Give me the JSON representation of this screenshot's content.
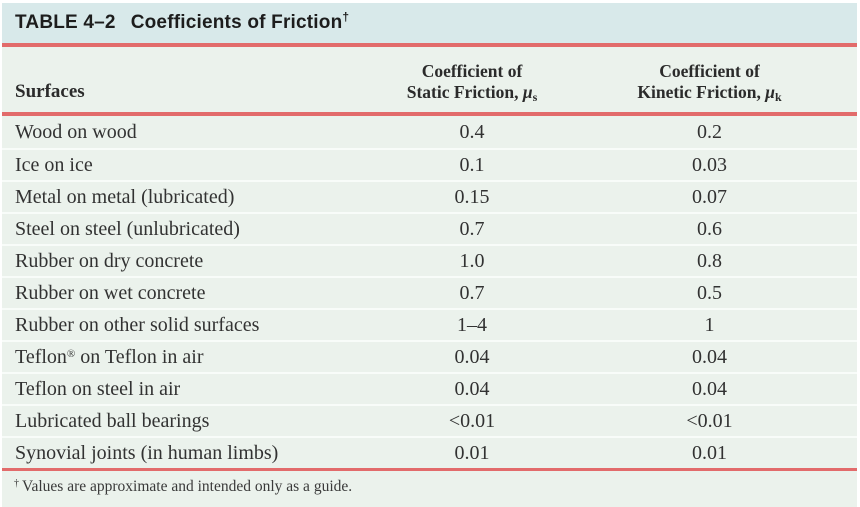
{
  "colors": {
    "title_bar_bg": "#d8e9ea",
    "body_bg": "#ebf2ec",
    "rule_red": "#e26b6b",
    "row_separator": "#f8fcf9",
    "text": "#2b2b2b"
  },
  "table": {
    "title": {
      "label": "TABLE 4–2",
      "name": "Coefficients of Friction",
      "dagger": "†"
    },
    "columns": {
      "surfaces": "Surfaces",
      "static": {
        "line1": "Coefficient of",
        "line2": "Static Friction, ",
        "symbol": "μ",
        "sub": "s"
      },
      "kinetic": {
        "line1": "Coefficient of",
        "line2": "Kinetic Friction, ",
        "symbol": "μ",
        "sub": "k"
      }
    },
    "rows": [
      {
        "surface": "Wood on wood",
        "static": "0.4",
        "kinetic": "0.2"
      },
      {
        "surface": "Ice on ice",
        "static": "0.1",
        "kinetic": "0.03"
      },
      {
        "surface": "Metal on metal (lubricated)",
        "static": "0.15",
        "kinetic": "0.07"
      },
      {
        "surface": "Steel on steel (unlubricated)",
        "static": "0.7",
        "kinetic": "0.6"
      },
      {
        "surface": "Rubber on dry concrete",
        "static": "1.0",
        "kinetic": "0.8"
      },
      {
        "surface": "Rubber on wet concrete",
        "static": "0.7",
        "kinetic": "0.5"
      },
      {
        "surface": "Rubber on other solid surfaces",
        "static": "1–4",
        "kinetic": "1"
      },
      {
        "surface": "Teflon® on Teflon in air",
        "static": "0.04",
        "kinetic": "0.04"
      },
      {
        "surface": "Teflon on steel in air",
        "static": "0.04",
        "kinetic": "0.04"
      },
      {
        "surface": "Lubricated ball bearings",
        "static": "<0.01",
        "kinetic": "<0.01"
      },
      {
        "surface": "Synovial joints (in human limbs)",
        "static": "0.01",
        "kinetic": "0.01"
      }
    ],
    "footnote": {
      "dagger": "†",
      "text": "Values are approximate and intended only as a guide."
    }
  }
}
